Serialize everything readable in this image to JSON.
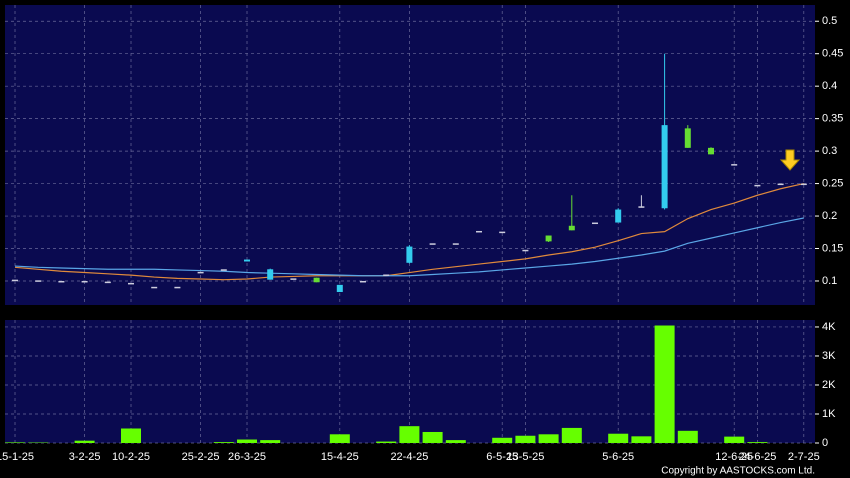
{
  "chart_data": [
    {
      "type": "candlestick",
      "categories": [
        "15-1-25",
        null,
        null,
        "3-2-25",
        null,
        "10-2-25",
        null,
        null,
        "25-2-25",
        null,
        "26-3-25",
        null,
        null,
        null,
        "15-4-25",
        null,
        null,
        "22-4-25",
        null,
        null,
        null,
        "6-5-25",
        "13-5-25",
        null,
        null,
        null,
        "5-6-25",
        null,
        null,
        null,
        null,
        "12-6-25",
        "24-6-25",
        null,
        "2-7-25"
      ],
      "open": [
        0.102,
        0.101,
        0.1,
        0.1,
        0.099,
        0.097,
        0.091,
        0.091,
        0.114,
        0.118,
        0.13,
        0.102,
        0.104,
        0.105,
        0.083,
        0.1,
        0.11,
        0.128,
        0.158,
        0.158,
        0.177,
        0.176,
        0.148,
        0.17,
        0.185,
        0.19,
        0.19,
        0.215,
        0.212,
        0.335,
        0.305,
        0.28,
        0.248,
        0.25,
        0.25
      ],
      "high": [
        0.102,
        0.101,
        0.1,
        0.1,
        0.099,
        0.097,
        0.091,
        0.091,
        0.114,
        0.118,
        0.133,
        0.119,
        0.104,
        0.105,
        0.094,
        0.1,
        0.11,
        0.155,
        0.158,
        0.158,
        0.177,
        0.176,
        0.148,
        0.17,
        0.232,
        0.19,
        0.212,
        0.232,
        0.45,
        0.34,
        0.306,
        0.28,
        0.248,
        0.25,
        0.25
      ],
      "low": [
        0.102,
        0.101,
        0.1,
        0.1,
        0.099,
        0.097,
        0.091,
        0.091,
        0.114,
        0.118,
        0.13,
        0.102,
        0.104,
        0.098,
        0.083,
        0.1,
        0.11,
        0.127,
        0.158,
        0.158,
        0.177,
        0.176,
        0.148,
        0.16,
        0.178,
        0.19,
        0.19,
        0.213,
        0.21,
        0.305,
        0.295,
        0.28,
        0.248,
        0.25,
        0.25
      ],
      "close": [
        0.102,
        0.101,
        0.1,
        0.1,
        0.099,
        0.097,
        0.091,
        0.091,
        0.114,
        0.118,
        0.133,
        0.118,
        0.104,
        0.098,
        0.094,
        0.1,
        0.11,
        0.153,
        0.158,
        0.158,
        0.177,
        0.176,
        0.148,
        0.161,
        0.178,
        0.19,
        0.21,
        0.215,
        0.34,
        0.305,
        0.295,
        0.28,
        0.248,
        0.25,
        0.25
      ],
      "up_color": "#33ccee",
      "down_color": "#66dd33",
      "flat_color": "#ccccdd",
      "series": [
        {
          "color": "#e08a3c",
          "values": [
            0.121,
            0.118,
            0.115,
            0.113,
            0.111,
            0.109,
            0.106,
            0.104,
            0.103,
            0.102,
            0.103,
            0.106,
            0.107,
            0.108,
            0.108,
            0.108,
            0.108,
            0.113,
            0.118,
            0.122,
            0.126,
            0.13,
            0.134,
            0.14,
            0.145,
            0.152,
            0.162,
            0.173,
            0.176,
            0.196,
            0.21,
            0.22,
            0.232,
            0.242,
            0.25
          ]
        },
        {
          "color": "#5aa6e6",
          "values": [
            0.123,
            0.121,
            0.12,
            0.119,
            0.118,
            0.118,
            0.118,
            0.117,
            0.116,
            0.115,
            0.113,
            0.112,
            0.111,
            0.11,
            0.109,
            0.108,
            0.108,
            0.108,
            0.11,
            0.112,
            0.114,
            0.117,
            0.12,
            0.123,
            0.126,
            0.13,
            0.135,
            0.14,
            0.146,
            0.158,
            0.166,
            0.174,
            0.182,
            0.19,
            0.197
          ]
        }
      ],
      "ylim": [
        0.063,
        0.525
      ],
      "yticks": [
        0.1,
        0.15,
        0.2,
        0.25,
        0.3,
        0.35,
        0.4,
        0.45,
        0.5
      ],
      "grid": true
    },
    {
      "type": "bar",
      "values": [
        20,
        15,
        0,
        80,
        0,
        500,
        0,
        0,
        0,
        30,
        120,
        100,
        0,
        0,
        300,
        0,
        50,
        580,
        380,
        100,
        0,
        180,
        250,
        300,
        520,
        0,
        320,
        230,
        4050,
        420,
        0,
        220,
        30,
        0,
        0
      ],
      "color": "#66ff00",
      "ylim": [
        0,
        4240
      ],
      "yticks": [
        0,
        {
          "value": 1000,
          "label": "1K"
        },
        {
          "value": 2000,
          "label": "2K"
        },
        {
          "value": 3000,
          "label": "3K"
        },
        {
          "value": 4000,
          "label": "4K"
        }
      ],
      "grid": true
    }
  ],
  "copyright": "Copyright by AASTOCKS.com Ltd."
}
